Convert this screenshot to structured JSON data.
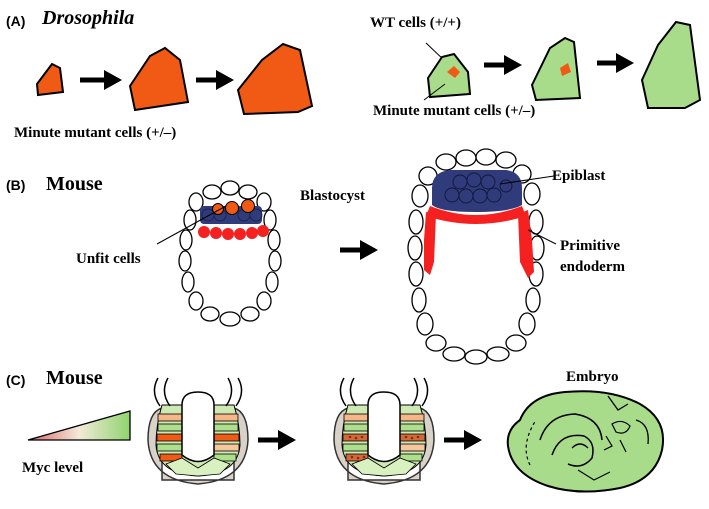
{
  "panel_a": {
    "letter": "(A)",
    "title": "Drosophila",
    "minute_label": "Minute mutant cells (+/–)",
    "wt_label": "WT cells (+/+)",
    "minute_label_right": "Minute mutant cells (+/–)"
  },
  "panel_b": {
    "letter": "(B)",
    "title": "Mouse",
    "blastocyst_label": "Blastocyst",
    "unfit_label": "Unfit cells",
    "epiblast_label": "Epiblast",
    "primitive_label_1": "Primitive",
    "primitive_label_2": "endoderm"
  },
  "panel_c": {
    "letter": "(C)",
    "title": "Mouse",
    "myc_label": "Myc level",
    "embryo_label": "Embryo"
  },
  "colors": {
    "mutant_orange": "#f05a14",
    "wt_green": "#a8dc8a",
    "epiblast_navy": "#2f3b7a",
    "endoderm_red": "#f52020",
    "gradient_start": "#d9686a",
    "gradient_end": "#8fd46e"
  }
}
